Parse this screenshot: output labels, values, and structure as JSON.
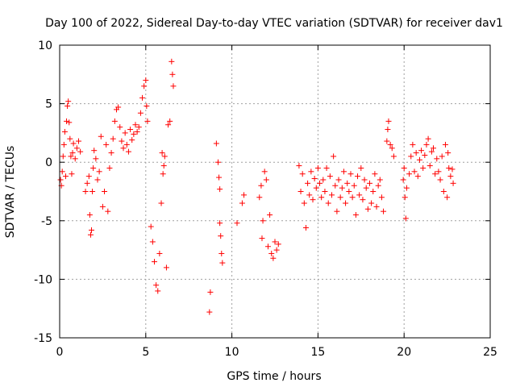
{
  "chart_data": {
    "type": "scatter",
    "title": "Day 100 of 2022, Sidereal Day-to-day VTEC variation (SDTVAR) for receiver dav1",
    "xlabel": "GPS time / hours",
    "ylabel": "SDTVAR / TECUs",
    "xlim": [
      0,
      25
    ],
    "ylim": [
      -15,
      10
    ],
    "xticks": [
      "0",
      "5",
      "10",
      "15",
      "20",
      "25"
    ],
    "yticks": [
      "-15",
      "-10",
      "-5",
      "0",
      "5",
      "10"
    ],
    "grid": true,
    "marker": "+",
    "color": "#ff0000",
    "series": [
      {
        "name": "SDTVAR",
        "points": [
          [
            0.05,
            -1.5
          ],
          [
            0.1,
            -2.0
          ],
          [
            0.15,
            -0.8
          ],
          [
            0.2,
            0.5
          ],
          [
            0.25,
            1.5
          ],
          [
            0.3,
            2.6
          ],
          [
            0.35,
            -1.2
          ],
          [
            0.4,
            3.5
          ],
          [
            0.45,
            4.8
          ],
          [
            0.5,
            5.2
          ],
          [
            0.55,
            3.4
          ],
          [
            0.6,
            2.0
          ],
          [
            0.65,
            0.5
          ],
          [
            0.7,
            -1.0
          ],
          [
            0.75,
            0.8
          ],
          [
            0.8,
            1.6
          ],
          [
            0.9,
            0.3
          ],
          [
            1.0,
            1.2
          ],
          [
            1.1,
            1.8
          ],
          [
            1.2,
            0.9
          ],
          [
            1.5,
            -2.5
          ],
          [
            1.6,
            -1.8
          ],
          [
            1.7,
            -1.2
          ],
          [
            1.75,
            -4.5
          ],
          [
            1.8,
            -6.2
          ],
          [
            1.85,
            -5.8
          ],
          [
            1.9,
            -2.5
          ],
          [
            1.95,
            -0.5
          ],
          [
            2.0,
            1.0
          ],
          [
            2.1,
            0.3
          ],
          [
            2.2,
            -1.5
          ],
          [
            2.3,
            -0.8
          ],
          [
            2.4,
            2.2
          ],
          [
            2.5,
            -3.8
          ],
          [
            2.6,
            -2.5
          ],
          [
            2.7,
            1.5
          ],
          [
            2.8,
            -4.2
          ],
          [
            2.9,
            -0.5
          ],
          [
            3.0,
            0.8
          ],
          [
            3.1,
            2.0
          ],
          [
            3.2,
            3.5
          ],
          [
            3.3,
            4.5
          ],
          [
            3.4,
            4.7
          ],
          [
            3.5,
            3.0
          ],
          [
            3.6,
            1.8
          ],
          [
            3.7,
            1.2
          ],
          [
            3.8,
            2.5
          ],
          [
            3.9,
            1.5
          ],
          [
            4.0,
            0.9
          ],
          [
            4.1,
            2.8
          ],
          [
            4.2,
            1.9
          ],
          [
            4.3,
            2.4
          ],
          [
            4.4,
            3.2
          ],
          [
            4.5,
            2.6
          ],
          [
            4.6,
            3.0
          ],
          [
            4.7,
            4.2
          ],
          [
            4.8,
            5.5
          ],
          [
            4.9,
            6.5
          ],
          [
            5.0,
            7.0
          ],
          [
            5.05,
            4.8
          ],
          [
            5.1,
            3.5
          ],
          [
            5.3,
            -5.5
          ],
          [
            5.4,
            -6.8
          ],
          [
            5.5,
            -8.5
          ],
          [
            5.6,
            -10.5
          ],
          [
            5.7,
            -11.0
          ],
          [
            5.8,
            -7.8
          ],
          [
            5.9,
            -3.5
          ],
          [
            6.0,
            -1.0
          ],
          [
            6.1,
            0.5
          ],
          [
            5.95,
            0.8
          ],
          [
            6.05,
            -0.3
          ],
          [
            6.2,
            -9.0
          ],
          [
            6.3,
            3.2
          ],
          [
            6.4,
            3.5
          ],
          [
            6.5,
            8.6
          ],
          [
            6.55,
            7.5
          ],
          [
            6.6,
            6.5
          ],
          [
            8.7,
            -12.8
          ],
          [
            8.75,
            -11.1
          ],
          [
            9.1,
            1.6
          ],
          [
            9.2,
            0.0
          ],
          [
            9.25,
            -1.3
          ],
          [
            9.3,
            -5.2
          ],
          [
            9.35,
            -6.3
          ],
          [
            9.4,
            -7.8
          ],
          [
            9.45,
            -8.6
          ],
          [
            9.3,
            -2.3
          ],
          [
            10.3,
            -5.2
          ],
          [
            10.6,
            -3.5
          ],
          [
            10.7,
            -2.8
          ],
          [
            11.6,
            -3.0
          ],
          [
            11.7,
            -2.0
          ],
          [
            11.75,
            -6.5
          ],
          [
            11.8,
            -5.0
          ],
          [
            11.9,
            -0.8
          ],
          [
            12.0,
            -1.5
          ],
          [
            12.1,
            -7.2
          ],
          [
            12.2,
            -4.5
          ],
          [
            12.3,
            -7.8
          ],
          [
            12.4,
            -8.2
          ],
          [
            12.5,
            -6.8
          ],
          [
            12.6,
            -7.5
          ],
          [
            12.7,
            -7.0
          ],
          [
            13.9,
            -0.3
          ],
          [
            14.0,
            -2.5
          ],
          [
            14.1,
            -1.0
          ],
          [
            14.2,
            -3.5
          ],
          [
            14.3,
            -5.6
          ],
          [
            14.4,
            -1.8
          ],
          [
            14.5,
            -2.8
          ],
          [
            14.6,
            -0.8
          ],
          [
            14.7,
            -3.2
          ],
          [
            14.8,
            -1.4
          ],
          [
            14.9,
            -2.2
          ],
          [
            15.0,
            -0.5
          ],
          [
            15.1,
            -1.8
          ],
          [
            15.2,
            -3.0
          ],
          [
            15.3,
            -1.5
          ],
          [
            15.4,
            -2.5
          ],
          [
            15.5,
            -0.5
          ],
          [
            15.6,
            -3.5
          ],
          [
            15.7,
            -1.2
          ],
          [
            15.8,
            -2.8
          ],
          [
            15.9,
            0.5
          ],
          [
            16.0,
            -2.0
          ],
          [
            16.1,
            -4.2
          ],
          [
            16.2,
            -1.5
          ],
          [
            16.3,
            -3.0
          ],
          [
            16.4,
            -2.2
          ],
          [
            16.5,
            -0.8
          ],
          [
            16.6,
            -3.5
          ],
          [
            16.7,
            -1.8
          ],
          [
            16.8,
            -2.5
          ],
          [
            16.9,
            -1.0
          ],
          [
            17.0,
            -3.0
          ],
          [
            17.1,
            -2.0
          ],
          [
            17.2,
            -4.5
          ],
          [
            17.3,
            -1.2
          ],
          [
            17.4,
            -2.8
          ],
          [
            17.5,
            -0.5
          ],
          [
            17.6,
            -3.2
          ],
          [
            17.7,
            -1.5
          ],
          [
            17.8,
            -2.2
          ],
          [
            17.9,
            -4.0
          ],
          [
            18.0,
            -1.8
          ],
          [
            18.1,
            -3.5
          ],
          [
            18.2,
            -2.5
          ],
          [
            18.3,
            -1.0
          ],
          [
            18.4,
            -3.8
          ],
          [
            18.5,
            -2.0
          ],
          [
            18.6,
            -1.5
          ],
          [
            18.7,
            -3.0
          ],
          [
            18.8,
            -4.2
          ],
          [
            19.0,
            1.8
          ],
          [
            19.05,
            2.8
          ],
          [
            19.1,
            3.5
          ],
          [
            19.2,
            1.5
          ],
          [
            19.3,
            1.2
          ],
          [
            19.4,
            0.5
          ],
          [
            19.95,
            -1.5
          ],
          [
            20.0,
            -0.5
          ],
          [
            20.05,
            -3.0
          ],
          [
            20.1,
            -4.8
          ],
          [
            20.15,
            -2.2
          ],
          [
            20.3,
            -1.0
          ],
          [
            20.4,
            0.5
          ],
          [
            20.5,
            1.5
          ],
          [
            20.6,
            -0.8
          ],
          [
            20.7,
            0.8
          ],
          [
            20.8,
            -1.2
          ],
          [
            20.9,
            0.2
          ],
          [
            21.0,
            1.0
          ],
          [
            21.1,
            -0.5
          ],
          [
            21.2,
            0.6
          ],
          [
            21.3,
            1.5
          ],
          [
            21.4,
            2.0
          ],
          [
            21.5,
            -0.3
          ],
          [
            21.6,
            0.9
          ],
          [
            21.7,
            1.2
          ],
          [
            21.8,
            -1.0
          ],
          [
            21.9,
            0.3
          ],
          [
            22.0,
            -0.8
          ],
          [
            22.1,
            -1.5
          ],
          [
            22.2,
            0.5
          ],
          [
            22.3,
            -2.5
          ],
          [
            22.4,
            1.5
          ],
          [
            22.5,
            -3.0
          ],
          [
            22.55,
            0.8
          ],
          [
            22.6,
            -0.5
          ],
          [
            22.7,
            -1.2
          ],
          [
            22.8,
            -0.6
          ],
          [
            22.85,
            -1.8
          ]
        ]
      }
    ]
  }
}
